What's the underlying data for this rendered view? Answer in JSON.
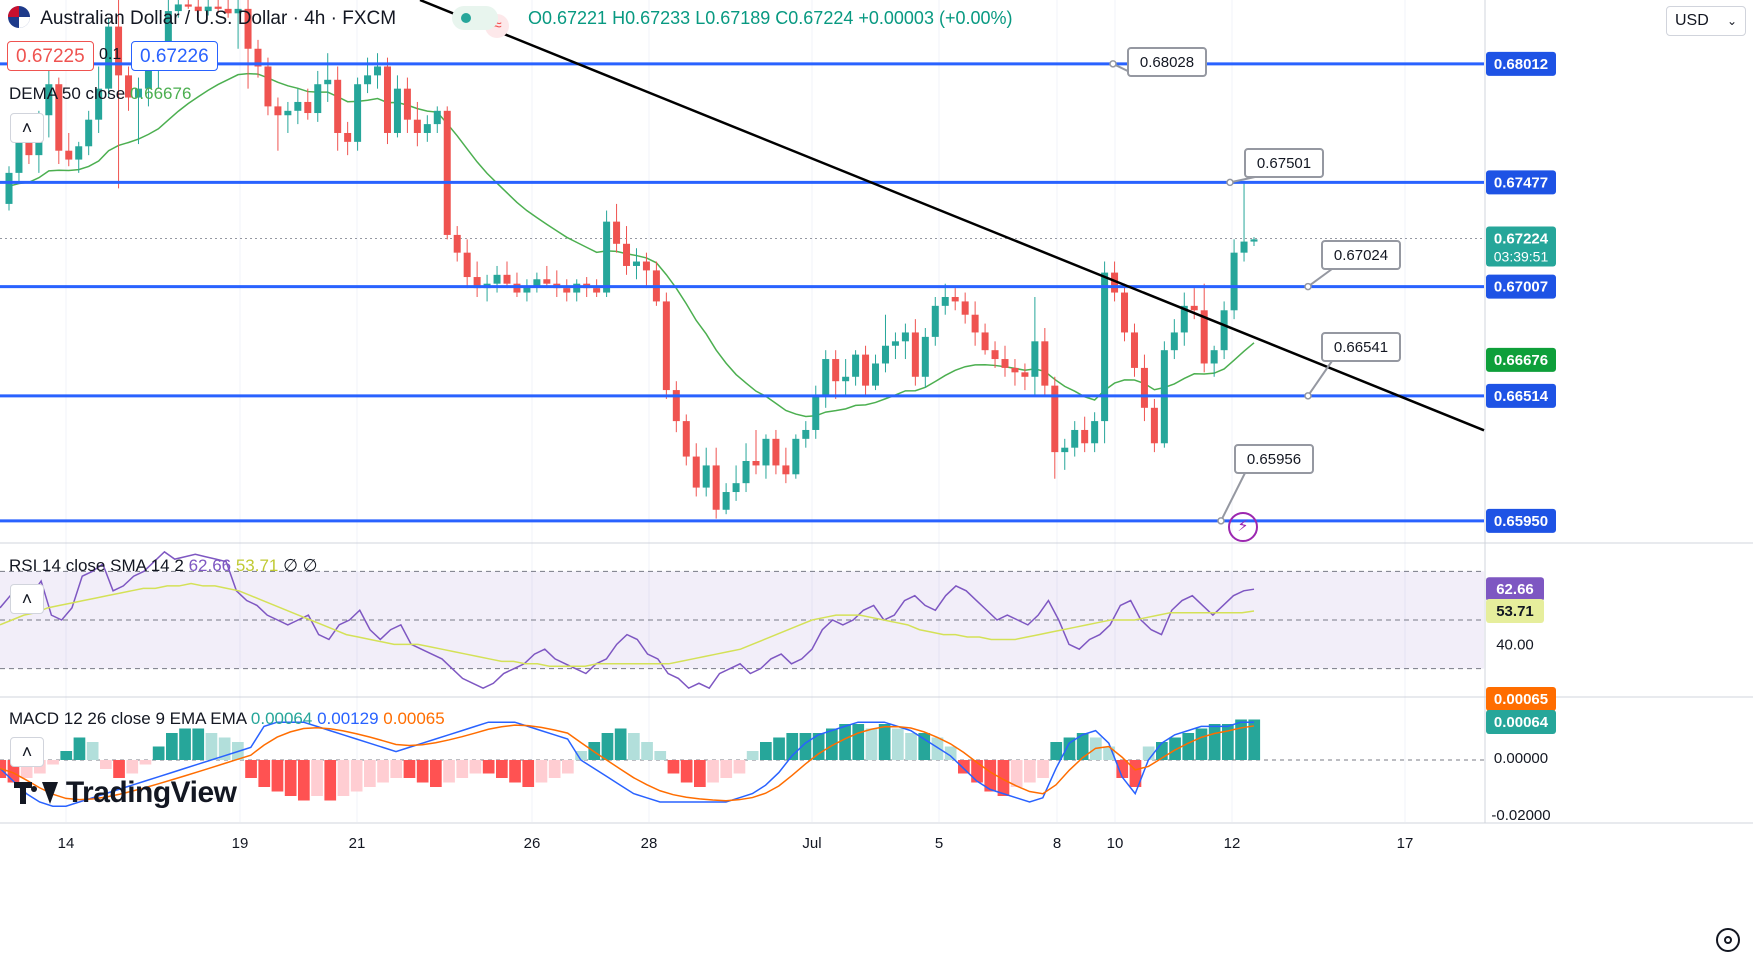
{
  "header": {
    "symbol_title": "Australian Dollar / U.S. Dollar · 4h · FXCM",
    "ohlc": {
      "open": "O0.67221",
      "high": "H0.67233",
      "low": "L0.67189",
      "close": "C0.67224",
      "change": "+0.00003 (+0.00%)"
    },
    "sell_price": "0.67225",
    "spread": "0.1",
    "buy_price": "0.67226",
    "dema_label": "DEMA 50 close",
    "dema_value": "0.66676",
    "currency": "USD"
  },
  "indicators": {
    "rsi_label": "RSI 14 close SMA 14 2",
    "rsi_value": "62.66",
    "rsi_sma_value": "53.71",
    "rsi_extra": "∅ ∅",
    "macd_label": "MACD 12 26 close 9 EMA EMA",
    "macd_hist": "0.00064",
    "macd_line": "0.00129",
    "macd_signal": "0.00065"
  },
  "brand": {
    "logo_text": "TradingView"
  },
  "colors": {
    "up": "#26a69a",
    "down": "#ef5350",
    "level_line": "#2962ff",
    "trendline": "#000000",
    "dema": "#4caf50",
    "rsi": "#7e57c2",
    "rsi_sma": "#d4e157",
    "macd_line": "#2962ff",
    "macd_signal": "#ff6d00"
  },
  "chart_data": {
    "type": "candlestick",
    "title": "Australian Dollar / U.S. Dollar · 4h · FXCM",
    "x_tick_labels": [
      "14",
      "19",
      "21",
      "26",
      "28",
      "Jul",
      "5",
      "8",
      "10",
      "12",
      "17"
    ],
    "y_range": [
      0.6585,
      0.683
    ],
    "price_axis_labels": [
      "0.68012",
      "0.67477",
      "0.67224",
      "0.67007",
      "0.66676",
      "0.66514",
      "0.65950"
    ],
    "last_price": 0.67224,
    "countdown": "03:39:51",
    "dema50_last": 0.66676,
    "horizontal_levels": [
      0.68012,
      0.67477,
      0.67007,
      0.66514,
      0.6595
    ],
    "price_callouts": [
      "0.68028",
      "0.67501",
      "0.67024",
      "0.66541",
      "0.65956"
    ],
    "trendline": {
      "from": [
        "Jun 19",
        0.6844
      ],
      "to": [
        "Jul 12",
        0.669
      ]
    },
    "candles_ohlc": [
      [
        0.6738,
        0.6755,
        0.6735,
        0.6752
      ],
      [
        0.6752,
        0.6769,
        0.6748,
        0.6766
      ],
      [
        0.6766,
        0.6774,
        0.6756,
        0.676
      ],
      [
        0.676,
        0.678,
        0.6752,
        0.6778
      ],
      [
        0.6778,
        0.68,
        0.6768,
        0.6792
      ],
      [
        0.6792,
        0.6795,
        0.6756,
        0.6762
      ],
      [
        0.6762,
        0.677,
        0.6755,
        0.6758
      ],
      [
        0.6758,
        0.6766,
        0.6752,
        0.6764
      ],
      [
        0.6764,
        0.678,
        0.676,
        0.6776
      ],
      [
        0.6776,
        0.68,
        0.677,
        0.679
      ],
      [
        0.679,
        0.6822,
        0.6786,
        0.6818
      ],
      [
        0.6818,
        0.683,
        0.6745,
        0.6796
      ],
      [
        0.6796,
        0.68,
        0.678,
        0.6786
      ],
      [
        0.6786,
        0.6795,
        0.6765,
        0.679
      ],
      [
        0.679,
        0.68,
        0.6782,
        0.6798
      ],
      [
        0.6798,
        0.681,
        0.679,
        0.6805
      ],
      [
        0.6805,
        0.683,
        0.68,
        0.6825
      ],
      [
        0.6825,
        0.683,
        0.6822,
        0.6828
      ],
      [
        0.6828,
        0.683,
        0.6826,
        0.6827
      ],
      [
        0.6827,
        0.683,
        0.6822,
        0.6825
      ],
      [
        0.6825,
        0.683,
        0.6823,
        0.6827
      ],
      [
        0.6827,
        0.683,
        0.6824,
        0.6826
      ],
      [
        0.6826,
        0.683,
        0.6822,
        0.6824
      ],
      [
        0.6824,
        0.683,
        0.6808,
        0.6826
      ],
      [
        0.6826,
        0.683,
        0.679,
        0.6808
      ],
      [
        0.6808,
        0.6812,
        0.6795,
        0.68
      ],
      [
        0.68,
        0.6804,
        0.6778,
        0.6782
      ],
      [
        0.6782,
        0.6786,
        0.6762,
        0.6778
      ],
      [
        0.6778,
        0.6784,
        0.677,
        0.678
      ],
      [
        0.678,
        0.679,
        0.6774,
        0.6784
      ],
      [
        0.6784,
        0.679,
        0.6776,
        0.6779
      ],
      [
        0.6779,
        0.6798,
        0.6775,
        0.6792
      ],
      [
        0.6792,
        0.6806,
        0.6784,
        0.6794
      ],
      [
        0.6794,
        0.68,
        0.6762,
        0.677
      ],
      [
        0.677,
        0.6775,
        0.676,
        0.6766
      ],
      [
        0.6766,
        0.6795,
        0.6762,
        0.6792
      ],
      [
        0.6792,
        0.6804,
        0.6788,
        0.6796
      ],
      [
        0.6796,
        0.6806,
        0.679,
        0.68
      ],
      [
        0.68,
        0.6804,
        0.6765,
        0.677
      ],
      [
        0.677,
        0.6796,
        0.6768,
        0.679
      ],
      [
        0.679,
        0.6795,
        0.677,
        0.6776
      ],
      [
        0.6776,
        0.6784,
        0.6764,
        0.677
      ],
      [
        0.677,
        0.6778,
        0.6766,
        0.6774
      ],
      [
        0.6774,
        0.6782,
        0.677,
        0.678
      ],
      [
        0.678,
        0.6782,
        0.6722,
        0.6724
      ],
      [
        0.6724,
        0.6728,
        0.6712,
        0.6716
      ],
      [
        0.6716,
        0.6722,
        0.67,
        0.6705
      ],
      [
        0.6705,
        0.6712,
        0.6696,
        0.67
      ],
      [
        0.67,
        0.6706,
        0.6694,
        0.6702
      ],
      [
        0.6702,
        0.671,
        0.6698,
        0.6706
      ],
      [
        0.6706,
        0.6712,
        0.67,
        0.6702
      ],
      [
        0.6702,
        0.6707,
        0.6696,
        0.6698
      ],
      [
        0.6698,
        0.6704,
        0.6694,
        0.6701
      ],
      [
        0.6701,
        0.6707,
        0.6698,
        0.6704
      ],
      [
        0.6704,
        0.671,
        0.67,
        0.6702
      ],
      [
        0.6702,
        0.6708,
        0.6696,
        0.67
      ],
      [
        0.67,
        0.6704,
        0.6694,
        0.6698
      ],
      [
        0.6698,
        0.6704,
        0.6694,
        0.6702
      ],
      [
        0.6702,
        0.6705,
        0.6696,
        0.67
      ],
      [
        0.67,
        0.6704,
        0.6696,
        0.6698
      ],
      [
        0.6698,
        0.6735,
        0.6696,
        0.673
      ],
      [
        0.673,
        0.6738,
        0.6716,
        0.672
      ],
      [
        0.672,
        0.6728,
        0.6706,
        0.671
      ],
      [
        0.671,
        0.6718,
        0.6704,
        0.6712
      ],
      [
        0.6712,
        0.6716,
        0.67,
        0.6708
      ],
      [
        0.6708,
        0.6712,
        0.6692,
        0.6694
      ],
      [
        0.6694,
        0.6698,
        0.665,
        0.6654
      ],
      [
        0.6654,
        0.6658,
        0.6635,
        0.664
      ],
      [
        0.664,
        0.6643,
        0.662,
        0.6624
      ],
      [
        0.6624,
        0.663,
        0.6606,
        0.661
      ],
      [
        0.661,
        0.6628,
        0.6606,
        0.662
      ],
      [
        0.662,
        0.6628,
        0.6596,
        0.66
      ],
      [
        0.66,
        0.6612,
        0.6598,
        0.6608
      ],
      [
        0.6608,
        0.662,
        0.6604,
        0.6612
      ],
      [
        0.6612,
        0.663,
        0.6608,
        0.6622
      ],
      [
        0.6622,
        0.6636,
        0.6616,
        0.662
      ],
      [
        0.662,
        0.6634,
        0.6614,
        0.6632
      ],
      [
        0.6632,
        0.6636,
        0.6616,
        0.662
      ],
      [
        0.662,
        0.6628,
        0.6612,
        0.6616
      ],
      [
        0.6616,
        0.6634,
        0.6614,
        0.6632
      ],
      [
        0.6632,
        0.664,
        0.6628,
        0.6636
      ],
      [
        0.6636,
        0.6656,
        0.6632,
        0.6652
      ],
      [
        0.6652,
        0.6672,
        0.6646,
        0.6668
      ],
      [
        0.6668,
        0.6672,
        0.665,
        0.6658
      ],
      [
        0.6658,
        0.6668,
        0.6652,
        0.666
      ],
      [
        0.666,
        0.6672,
        0.6656,
        0.667
      ],
      [
        0.667,
        0.6674,
        0.6652,
        0.6656
      ],
      [
        0.6656,
        0.667,
        0.6654,
        0.6666
      ],
      [
        0.6666,
        0.6688,
        0.6662,
        0.6674
      ],
      [
        0.6674,
        0.668,
        0.6668,
        0.6676
      ],
      [
        0.6676,
        0.6684,
        0.6668,
        0.668
      ],
      [
        0.668,
        0.6686,
        0.6656,
        0.666
      ],
      [
        0.666,
        0.6682,
        0.6655,
        0.6678
      ],
      [
        0.6678,
        0.6696,
        0.6674,
        0.6692
      ],
      [
        0.6692,
        0.6702,
        0.6688,
        0.6696
      ],
      [
        0.6696,
        0.67,
        0.669,
        0.6694
      ],
      [
        0.6694,
        0.6698,
        0.6684,
        0.6688
      ],
      [
        0.6688,
        0.6694,
        0.6674,
        0.668
      ],
      [
        0.668,
        0.6684,
        0.667,
        0.6672
      ],
      [
        0.6672,
        0.6676,
        0.6664,
        0.6668
      ],
      [
        0.6668,
        0.6674,
        0.666,
        0.6664
      ],
      [
        0.6664,
        0.6668,
        0.6656,
        0.6662
      ],
      [
        0.6662,
        0.6666,
        0.6654,
        0.666
      ],
      [
        0.666,
        0.6696,
        0.6652,
        0.6676
      ],
      [
        0.6676,
        0.6682,
        0.6652,
        0.6656
      ],
      [
        0.6656,
        0.666,
        0.6614,
        0.6626
      ],
      [
        0.6626,
        0.6632,
        0.6618,
        0.6628
      ],
      [
        0.6628,
        0.664,
        0.6624,
        0.6636
      ],
      [
        0.6636,
        0.6642,
        0.6626,
        0.663
      ],
      [
        0.663,
        0.6644,
        0.6626,
        0.664
      ],
      [
        0.664,
        0.6712,
        0.663,
        0.6707
      ],
      [
        0.6707,
        0.6712,
        0.6694,
        0.6698
      ],
      [
        0.6698,
        0.6702,
        0.6676,
        0.668
      ],
      [
        0.668,
        0.6684,
        0.666,
        0.6664
      ],
      [
        0.6664,
        0.667,
        0.664,
        0.6646
      ],
      [
        0.6646,
        0.665,
        0.6626,
        0.663
      ],
      [
        0.663,
        0.6676,
        0.6628,
        0.6672
      ],
      [
        0.6672,
        0.6686,
        0.6668,
        0.668
      ],
      [
        0.668,
        0.6698,
        0.6674,
        0.6692
      ],
      [
        0.6692,
        0.67,
        0.6686,
        0.669
      ],
      [
        0.669,
        0.6702,
        0.6662,
        0.6666
      ],
      [
        0.6666,
        0.6674,
        0.666,
        0.6672
      ],
      [
        0.6672,
        0.6694,
        0.6668,
        0.669
      ],
      [
        0.669,
        0.6722,
        0.6686,
        0.6716
      ],
      [
        0.6716,
        0.6748,
        0.6712,
        0.6721
      ],
      [
        0.6721,
        0.6723,
        0.6719,
        0.6722
      ]
    ],
    "rsi": {
      "range": [
        20,
        80
      ],
      "bands": [
        70,
        50,
        30
      ],
      "axis_labels": [
        "62.66",
        "53.71",
        "40.00"
      ],
      "values": [
        55,
        60,
        63,
        60,
        66,
        52,
        50,
        55,
        68,
        70,
        73,
        62,
        64,
        68,
        70,
        74,
        78,
        75,
        76,
        77,
        76,
        75,
        74,
        62,
        58,
        56,
        52,
        50,
        48,
        50,
        52,
        44,
        42,
        48,
        50,
        54,
        46,
        42,
        46,
        48,
        40,
        38,
        36,
        34,
        30,
        26,
        24,
        22,
        24,
        28,
        30,
        32,
        36,
        38,
        34,
        32,
        30,
        28,
        32,
        34,
        40,
        44,
        42,
        36,
        34,
        28,
        26,
        22,
        24,
        22,
        28,
        30,
        32,
        28,
        30,
        34,
        36,
        32,
        34,
        38,
        46,
        50,
        48,
        50,
        54,
        56,
        50,
        52,
        58,
        60,
        56,
        54,
        60,
        64,
        62,
        58,
        54,
        50,
        52,
        50,
        48,
        52,
        58,
        50,
        40,
        38,
        42,
        44,
        48,
        56,
        58,
        50,
        46,
        44,
        54,
        58,
        60,
        56,
        52,
        56,
        60,
        62,
        62.66
      ],
      "sma_values": [
        48,
        50,
        52,
        53,
        55,
        56,
        57,
        58,
        59,
        60,
        61,
        62,
        63,
        63,
        64,
        64,
        65,
        64,
        64,
        63,
        62,
        60,
        58,
        56,
        54,
        52,
        50,
        48,
        46,
        44,
        43,
        42,
        41,
        40,
        40,
        40,
        39,
        38,
        37,
        36,
        35,
        34,
        33,
        33,
        32,
        32,
        31,
        31,
        31,
        31,
        32,
        32,
        32,
        32,
        32,
        32,
        32,
        33,
        34,
        35,
        36,
        37,
        38,
        40,
        42,
        44,
        46,
        48,
        50,
        51,
        52,
        52,
        52,
        51,
        50,
        49,
        48,
        46,
        45,
        44,
        44,
        43,
        43,
        42,
        42,
        42,
        43,
        44,
        45,
        46,
        47,
        48,
        49,
        50,
        50,
        50,
        51,
        52,
        53,
        53,
        53,
        53,
        53,
        53,
        53,
        53.71
      ]
    },
    "macd": {
      "axis_labels": [
        "0.00065",
        "0.00064",
        "0.00000",
        "-0.02000"
      ],
      "histogram": [
        -0.4,
        -0.5,
        -0.4,
        -0.3,
        -0.1,
        0.2,
        0.5,
        0.4,
        -0.2,
        -0.4,
        -0.3,
        -0.1,
        0.3,
        0.6,
        0.7,
        0.7,
        0.6,
        0.5,
        0.4,
        -0.4,
        -0.6,
        -0.7,
        -0.8,
        -0.9,
        -0.8,
        -0.9,
        -0.8,
        -0.7,
        -0.6,
        -0.5,
        -0.4,
        -0.4,
        -0.5,
        -0.6,
        -0.5,
        -0.4,
        -0.3,
        -0.3,
        -0.4,
        -0.5,
        -0.6,
        -0.5,
        -0.4,
        -0.3,
        0.2,
        0.4,
        0.6,
        0.7,
        0.6,
        0.4,
        0.2,
        -0.3,
        -0.5,
        -0.6,
        -0.5,
        -0.4,
        -0.3,
        0.2,
        0.4,
        0.5,
        0.6,
        0.6,
        0.6,
        0.7,
        0.8,
        0.8,
        0.7,
        0.8,
        0.7,
        0.6,
        0.6,
        0.5,
        0.3,
        -0.3,
        -0.5,
        -0.7,
        -0.8,
        -0.6,
        -0.5,
        -0.4,
        0.4,
        0.5,
        0.6,
        0.5,
        0.3,
        -0.4,
        -0.6,
        0.3,
        0.4,
        0.5,
        0.6,
        0.7,
        0.8,
        0.8,
        0.9,
        0.9
      ],
      "macd_line": [
        -0.2,
        -0.5,
        -0.8,
        -1.0,
        -1.1,
        -1.1,
        -1.0,
        -0.9,
        -0.8,
        -0.7,
        -0.6,
        -0.5,
        -0.4,
        -0.3,
        -0.2,
        -0.1,
        0.0,
        0.1,
        0.2,
        0.3,
        0.8,
        0.9,
        0.9,
        0.9,
        0.8,
        0.7,
        0.6,
        0.5,
        0.4,
        0.3,
        0.2,
        0.3,
        0.4,
        0.5,
        0.6,
        0.7,
        0.8,
        0.9,
        0.9,
        0.9,
        0.8,
        0.7,
        0.6,
        0.5,
        0.0,
        -0.2,
        -0.4,
        -0.6,
        -0.8,
        -0.9,
        -1.0,
        -1.0,
        -1.0,
        -1.0,
        -1.0,
        -1.0,
        -0.9,
        -0.8,
        -0.6,
        -0.3,
        0.1,
        0.4,
        0.6,
        0.7,
        0.8,
        0.9,
        0.9,
        0.9,
        0.8,
        0.7,
        0.5,
        0.3,
        0.1,
        -0.2,
        -0.5,
        -0.7,
        -0.8,
        -0.9,
        -1.0,
        -0.9,
        -0.2,
        0.4,
        0.6,
        0.7,
        0.4,
        -0.4,
        -0.8,
        0.0,
        0.4,
        0.6,
        0.7,
        0.8,
        0.8,
        0.8,
        0.9,
        0.9
      ]
    }
  }
}
